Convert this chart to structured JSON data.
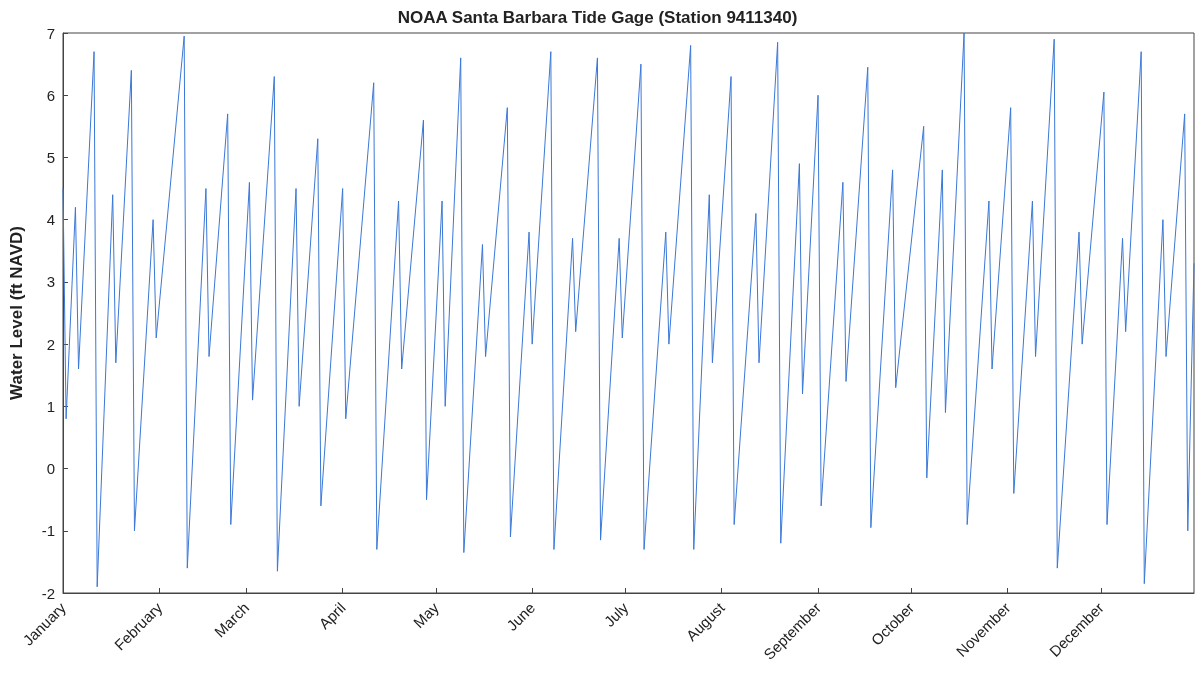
{
  "chart_data": {
    "type": "line",
    "title": "NOAA Santa Barbara Tide Gage (Station 9411340)",
    "ylabel": "Water Level (ft NAVD)",
    "x": [
      "--01-01",
      "--01-02",
      "--01-05",
      "--01-06",
      "--01-11",
      "--01-12",
      "--01-17",
      "--01-18",
      "--01-23",
      "--01-24",
      "--01-30",
      "--01-31",
      "--02-09",
      "--02-10",
      "--02-16",
      "--02-17",
      "--02-23",
      "--02-24",
      "--03-02",
      "--03-03",
      "--03-10",
      "--03-11",
      "--03-17",
      "--03-18",
      "--03-24",
      "--03-25",
      "--04-01",
      "--04-02",
      "--04-11",
      "--04-12",
      "--04-19",
      "--04-20",
      "--04-27",
      "--04-28",
      "--05-03",
      "--05-04",
      "--05-09",
      "--05-10",
      "--05-16",
      "--05-17",
      "--05-24",
      "--05-25",
      "--05-31",
      "--06-01",
      "--06-07",
      "--06-08",
      "--06-14",
      "--06-15",
      "--06-22",
      "--06-23",
      "--06-29",
      "--06-30",
      "--07-06",
      "--07-07",
      "--07-14",
      "--07-15",
      "--07-22",
      "--07-23",
      "--07-28",
      "--07-29",
      "--08-04",
      "--08-05",
      "--08-12",
      "--08-13",
      "--08-19",
      "--08-20",
      "--08-26",
      "--08-27",
      "--09-01",
      "--09-02",
      "--09-09",
      "--09-10",
      "--09-17",
      "--09-18",
      "--09-25",
      "--09-26",
      "--10-05",
      "--10-06",
      "--10-11",
      "--10-12",
      "--10-18",
      "--10-19",
      "--10-26",
      "--10-27",
      "--11-02",
      "--11-03",
      "--11-09",
      "--11-10",
      "--11-16",
      "--11-17",
      "--11-24",
      "--11-25",
      "--12-02",
      "--12-03",
      "--12-08",
      "--12-09",
      "--12-14",
      "--12-15",
      "--12-21",
      "--12-22",
      "--12-28",
      "--12-29",
      "--12-31"
    ],
    "series": [
      {
        "color": "#3a78d8",
        "values": [
          4.5,
          0.8,
          4.2,
          1.6,
          6.7,
          -1.9,
          4.4,
          1.7,
          6.4,
          -1.0,
          4.0,
          2.1,
          6.95,
          -1.6,
          4.5,
          1.8,
          5.7,
          -0.9,
          4.6,
          1.1,
          6.3,
          -1.65,
          4.5,
          1.0,
          5.3,
          -0.6,
          4.5,
          0.8,
          6.2,
          -1.3,
          4.3,
          1.6,
          5.6,
          -0.5,
          4.3,
          1.0,
          6.6,
          -1.35,
          3.6,
          1.8,
          5.8,
          -1.1,
          3.8,
          2.0,
          6.7,
          -1.3,
          3.7,
          2.2,
          6.6,
          -1.15,
          3.7,
          2.1,
          6.5,
          -1.3,
          3.8,
          2.0,
          6.8,
          -1.3,
          4.4,
          1.7,
          6.3,
          -0.9,
          4.1,
          1.7,
          6.85,
          -1.2,
          4.9,
          1.2,
          6.0,
          -0.6,
          4.6,
          1.4,
          6.45,
          -0.95,
          4.8,
          1.3,
          5.5,
          -0.15,
          4.8,
          0.9,
          7.0,
          -0.9,
          4.3,
          1.6,
          5.8,
          -0.4,
          4.3,
          1.8,
          6.9,
          -1.6,
          3.8,
          2.0,
          6.05,
          -0.9,
          3.7,
          2.2,
          6.7,
          -1.85,
          4.0,
          1.8,
          5.7,
          -1.0,
          3.3
        ]
      }
    ],
    "xlim": [
      "--01-01",
      "--12-31"
    ],
    "xticks": [
      {
        "value": "--01-01",
        "label": "January"
      },
      {
        "value": "--02-01",
        "label": "February"
      },
      {
        "value": "--03-01",
        "label": "March"
      },
      {
        "value": "--04-01",
        "label": "April"
      },
      {
        "value": "--05-01",
        "label": "May"
      },
      {
        "value": "--06-01",
        "label": "June"
      },
      {
        "value": "--07-01",
        "label": "July"
      },
      {
        "value": "--08-01",
        "label": "August"
      },
      {
        "value": "--09-01",
        "label": "September"
      },
      {
        "value": "--10-01",
        "label": "October"
      },
      {
        "value": "--11-01",
        "label": "November"
      },
      {
        "value": "--12-01",
        "label": "December"
      }
    ],
    "ylim": [
      -2,
      7
    ],
    "yticks": [
      -2,
      -1,
      0,
      1,
      2,
      3,
      4,
      5,
      6,
      7
    ],
    "grid": false
  }
}
